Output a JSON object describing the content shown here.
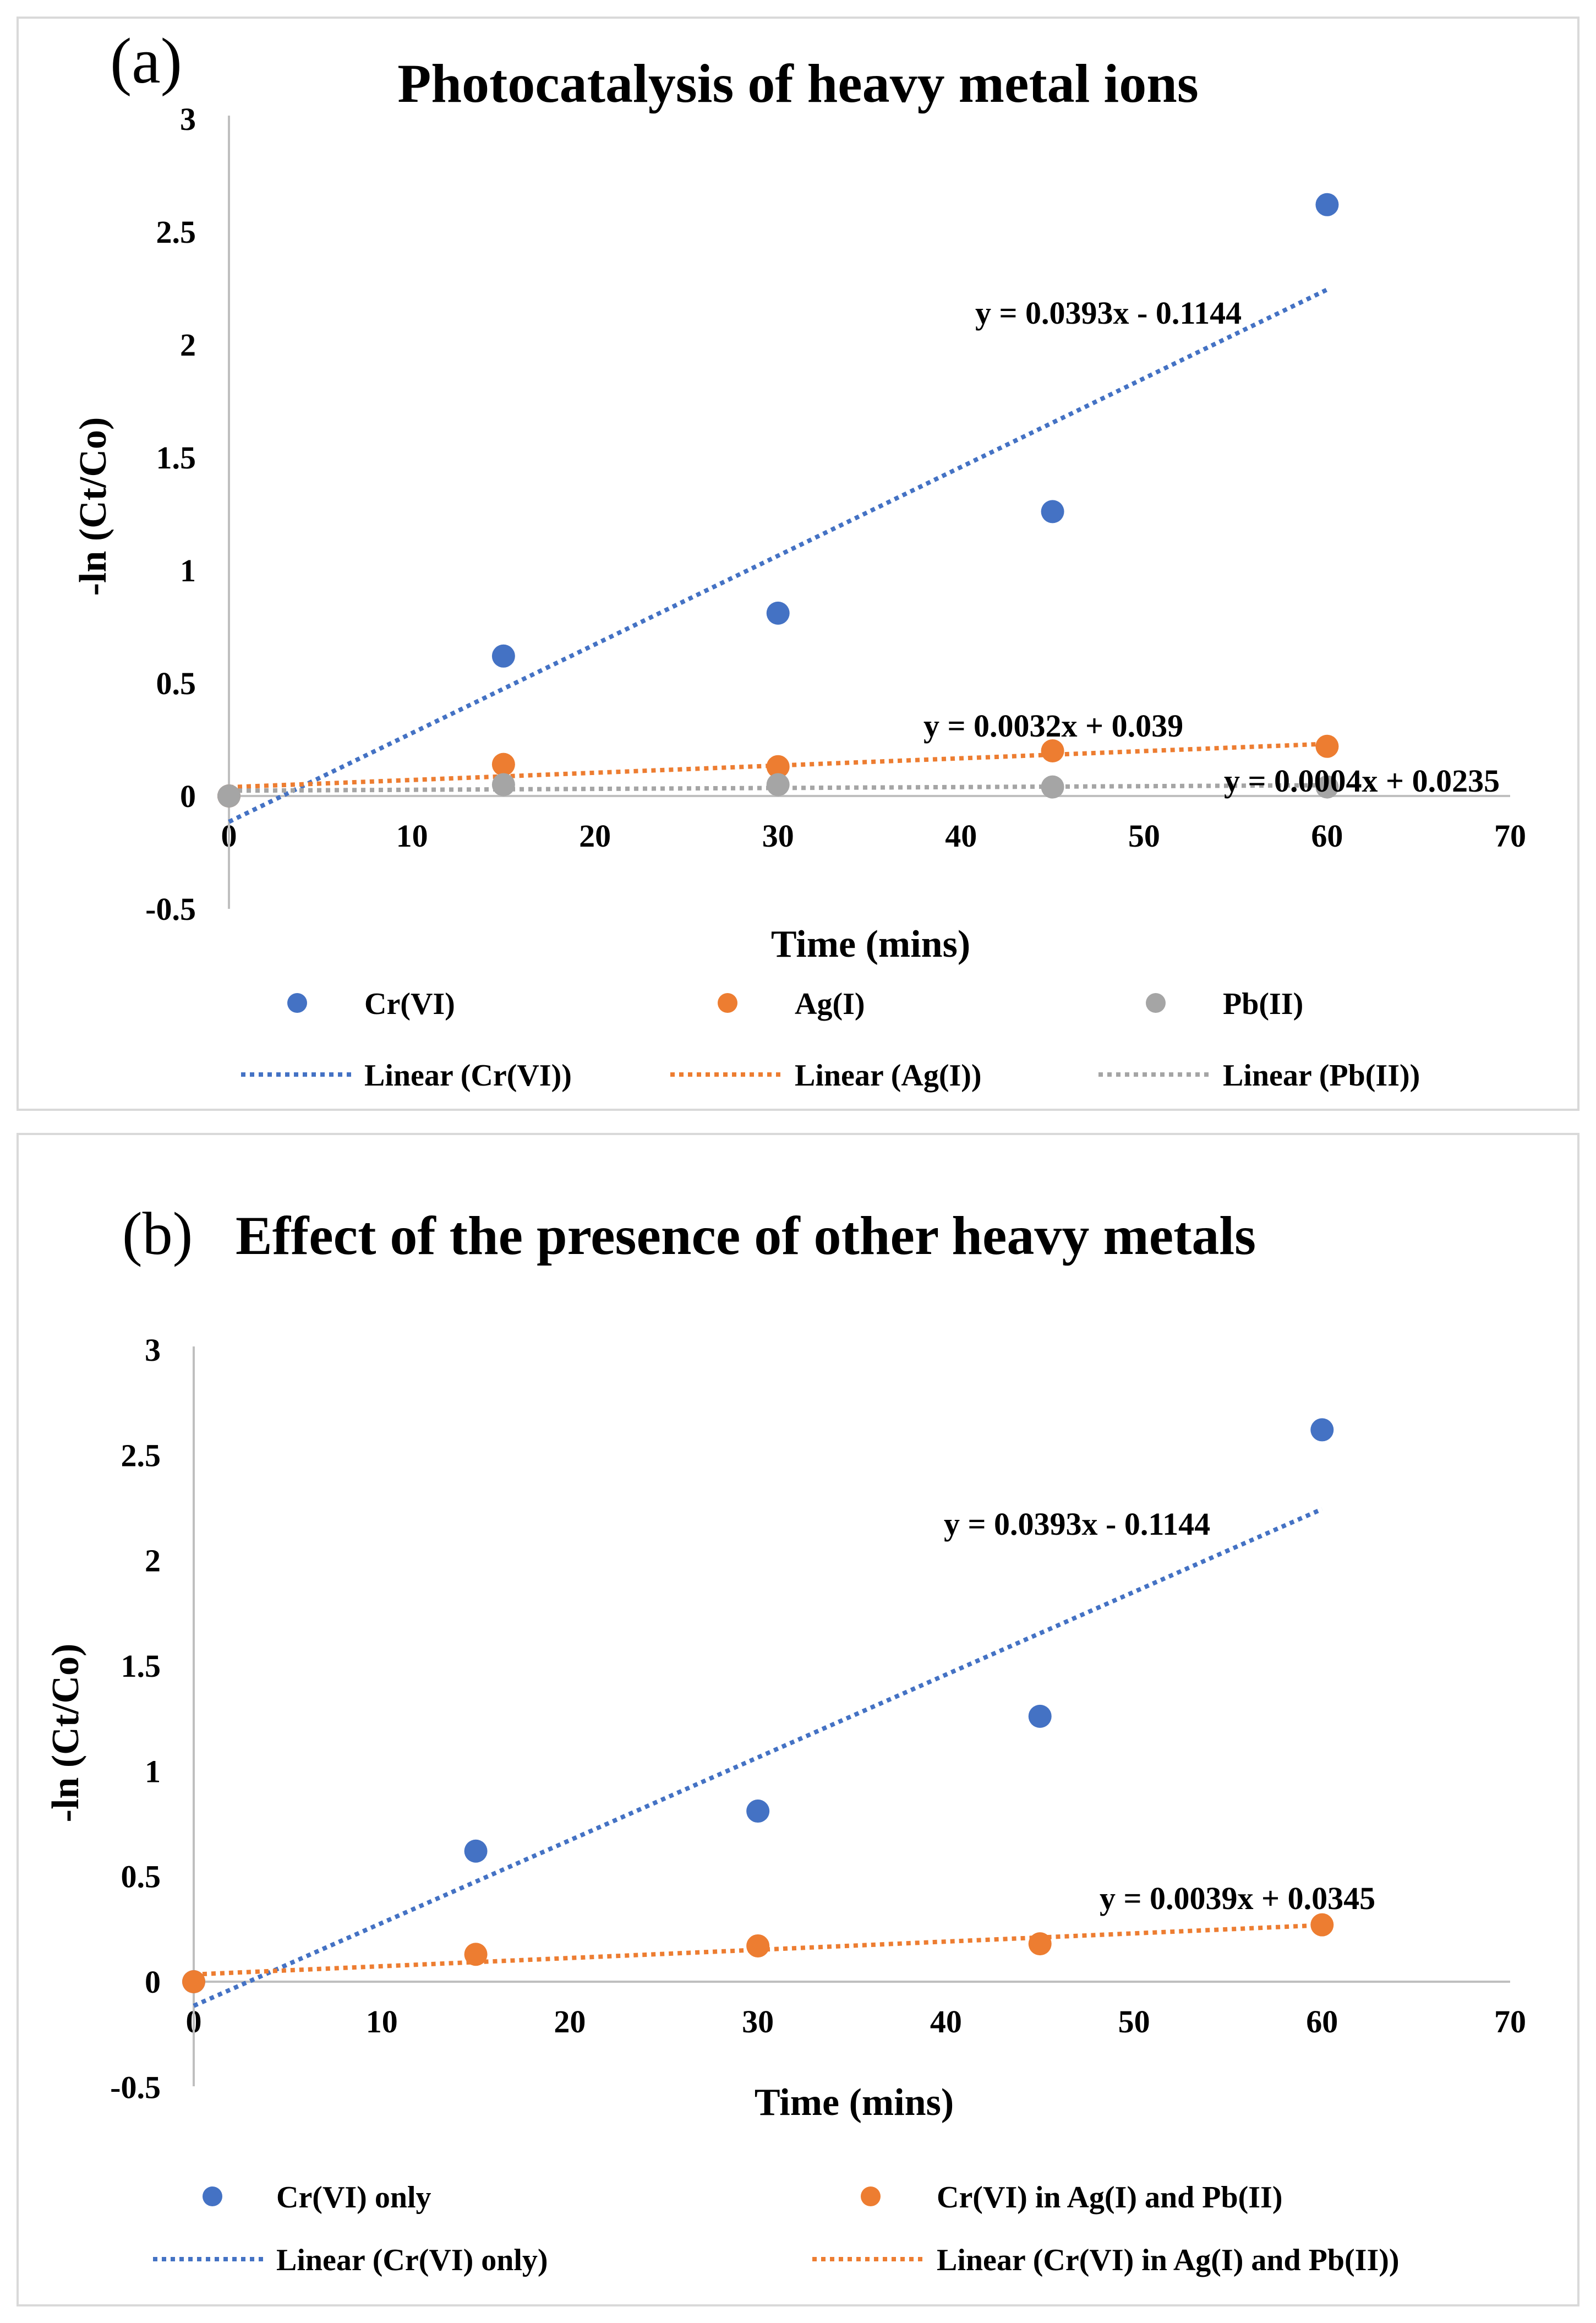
{
  "colors": {
    "cr": "#4472C4",
    "ag": "#ED7D31",
    "pb": "#A5A5A5",
    "axis": "#BFBFBF",
    "border": "#D9D9D9"
  },
  "chart_data": [
    {
      "type": "scatter",
      "panel_label": "(a)",
      "title": "Photocatalysis of heavy metal ions",
      "xlabel": "Time (mins)",
      "ylabel": "-ln (Ct/Co)",
      "xlim": [
        0,
        70
      ],
      "ylim": [
        -0.5,
        3
      ],
      "xticks": [
        0,
        10,
        20,
        30,
        40,
        50,
        60,
        70
      ],
      "yticks": [
        -0.5,
        0,
        0.5,
        1,
        1.5,
        2,
        2.5,
        3
      ],
      "xtick_labels": [
        "0",
        "10",
        "20",
        "30",
        "40",
        "50",
        "60",
        "70"
      ],
      "ytick_labels": [
        "-0.5",
        "0",
        "0.5",
        "1",
        "1.5",
        "2",
        "2.5",
        "3"
      ],
      "series": [
        {
          "name": "Cr(VI)",
          "color_key": "cr",
          "x": [
            0,
            15,
            30,
            45,
            60
          ],
          "y": [
            0,
            0.62,
            0.81,
            1.26,
            2.62
          ],
          "trend": {
            "legend": "Linear (Cr(VI))",
            "slope": 0.0393,
            "intercept": -0.1144,
            "equation": "y = 0.0393x - 0.1144"
          }
        },
        {
          "name": "Ag(I)",
          "color_key": "ag",
          "x": [
            0,
            15,
            30,
            45,
            60
          ],
          "y": [
            0,
            0.14,
            0.13,
            0.2,
            0.22
          ],
          "trend": {
            "legend": "Linear (Ag(I))",
            "slope": 0.0032,
            "intercept": 0.039,
            "equation": "y = 0.0032x + 0.039"
          }
        },
        {
          "name": "Pb(II)",
          "color_key": "pb",
          "x": [
            0,
            15,
            30,
            45,
            60
          ],
          "y": [
            0,
            0.05,
            0.05,
            0.04,
            0.04
          ],
          "trend": {
            "legend": "Linear (Pb(II))",
            "slope": 0.0004,
            "intercept": 0.0235,
            "equation": "y = 0.0004x + 0.0235"
          }
        }
      ]
    },
    {
      "type": "scatter",
      "panel_label": "(b)",
      "title": "Effect of the presence of other heavy metals",
      "xlabel": "Time (mins)",
      "ylabel": "-ln (Ct/Co)",
      "xlim": [
        0,
        70
      ],
      "ylim": [
        -0.5,
        3
      ],
      "xticks": [
        0,
        10,
        20,
        30,
        40,
        50,
        60,
        70
      ],
      "yticks": [
        -0.5,
        0,
        0.5,
        1,
        1.5,
        2,
        2.5,
        3
      ],
      "xtick_labels": [
        "0",
        "10",
        "20",
        "30",
        "40",
        "50",
        "60",
        "70"
      ],
      "ytick_labels": [
        "-0.5",
        "0",
        "0.5",
        "1",
        "1.5",
        "2",
        "2.5",
        "3"
      ],
      "series": [
        {
          "name": "Cr(VI) only",
          "color_key": "cr",
          "x": [
            0,
            15,
            30,
            45,
            60
          ],
          "y": [
            0,
            0.62,
            0.81,
            1.26,
            2.62
          ],
          "trend": {
            "legend": "Linear (Cr(VI) only)",
            "slope": 0.0393,
            "intercept": -0.1144,
            "equation": "y = 0.0393x - 0.1144"
          }
        },
        {
          "name": "Cr(VI) in Ag(I) and Pb(II)",
          "color_key": "ag",
          "x": [
            0,
            15,
            30,
            45,
            60
          ],
          "y": [
            0,
            0.13,
            0.17,
            0.18,
            0.27
          ],
          "trend": {
            "legend": "Linear (Cr(VI) in Ag(I) and Pb(II))",
            "slope": 0.0039,
            "intercept": 0.0345,
            "equation": "y = 0.0039x + 0.0345"
          }
        }
      ]
    }
  ]
}
